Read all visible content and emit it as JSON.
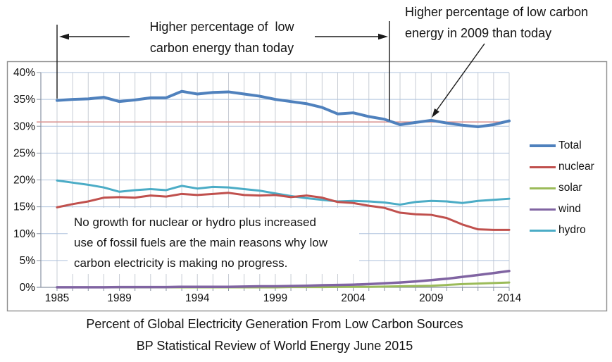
{
  "chart_data": {
    "type": "line",
    "title": "Percent of Global Electricity Generation From Low Carbon Sources",
    "source": "BP Statistical Review of World Energy June 2015",
    "xlabel": "",
    "ylabel": "",
    "ylim": [
      0,
      40
    ],
    "grid": true,
    "legend_position": "right",
    "ytick_values": [
      0,
      5,
      10,
      15,
      20,
      25,
      30,
      35,
      40
    ],
    "ytick_labels": [
      "0%",
      "5%",
      "10%",
      "15%",
      "20%",
      "25%",
      "30%",
      "35%",
      "40%"
    ],
    "xtick_years": [
      1985,
      1989,
      1994,
      1999,
      2004,
      2009,
      2014
    ],
    "xtick_labels": [
      "1985",
      "1989",
      "1994",
      "1999",
      "2004",
      "2009",
      "2014"
    ],
    "years": [
      1985,
      1986,
      1987,
      1988,
      1989,
      1990,
      1991,
      1992,
      1993,
      1994,
      1995,
      1996,
      1997,
      1998,
      1999,
      2000,
      2001,
      2002,
      2003,
      2004,
      2005,
      2006,
      2007,
      2008,
      2009,
      2010,
      2011,
      2012,
      2013,
      2014
    ],
    "series": [
      {
        "name": "Total",
        "color": "#4f81bd",
        "values": [
          34.8,
          35.0,
          35.1,
          35.4,
          34.6,
          34.9,
          35.3,
          35.3,
          36.5,
          36.0,
          36.3,
          36.4,
          36.0,
          35.6,
          35.0,
          34.6,
          34.2,
          33.5,
          32.3,
          32.5,
          31.8,
          31.3,
          30.3,
          30.7,
          31.1,
          30.6,
          30.2,
          29.9,
          30.3,
          31.0
        ]
      },
      {
        "name": "nuclear",
        "color": "#c0504d",
        "values": [
          14.9,
          15.5,
          16.0,
          16.7,
          16.8,
          16.7,
          17.1,
          16.9,
          17.4,
          17.2,
          17.4,
          17.6,
          17.2,
          17.1,
          17.2,
          16.8,
          17.1,
          16.7,
          15.9,
          15.7,
          15.2,
          14.8,
          13.9,
          13.6,
          13.5,
          12.9,
          11.7,
          10.8,
          10.7,
          10.7
        ]
      },
      {
        "name": "solar",
        "color": "#9bbb59",
        "values": [
          0,
          0,
          0,
          0,
          0,
          0,
          0,
          0,
          0,
          0,
          0,
          0,
          0,
          0,
          0,
          0.05,
          0.05,
          0.05,
          0.08,
          0.1,
          0.1,
          0.15,
          0.2,
          0.25,
          0.3,
          0.45,
          0.6,
          0.7,
          0.8,
          0.9
        ]
      },
      {
        "name": "wind",
        "color": "#8064a2",
        "values": [
          0.02,
          0.02,
          0.02,
          0.02,
          0.05,
          0.05,
          0.05,
          0.05,
          0.1,
          0.1,
          0.1,
          0.1,
          0.15,
          0.2,
          0.2,
          0.25,
          0.3,
          0.4,
          0.45,
          0.5,
          0.6,
          0.75,
          0.9,
          1.1,
          1.35,
          1.6,
          1.95,
          2.3,
          2.65,
          3.05
        ]
      },
      {
        "name": "hydro",
        "color": "#4bacc6",
        "values": [
          19.9,
          19.5,
          19.1,
          18.6,
          17.8,
          18.1,
          18.3,
          18.1,
          18.9,
          18.4,
          18.7,
          18.6,
          18.3,
          18.0,
          17.5,
          17.0,
          16.6,
          16.3,
          16.0,
          16.1,
          16.0,
          15.8,
          15.4,
          15.9,
          16.1,
          16.0,
          15.7,
          16.1,
          16.3,
          16.5
        ]
      }
    ],
    "reference_line": {
      "value": 30.8,
      "color": "#d99694"
    },
    "annotations": {
      "left": {
        "line1": "Higher percentage of  low",
        "line2": "carbon energy than today"
      },
      "right": {
        "line1": "Higher percentage of low carbon",
        "line2": "energy in 2009 than today"
      },
      "note": {
        "line1": "No growth for nuclear or hydro plus increased",
        "line2": "use of fossil fuels are the main reasons why low",
        "line3": "carbon electricity is making no progress."
      }
    }
  }
}
